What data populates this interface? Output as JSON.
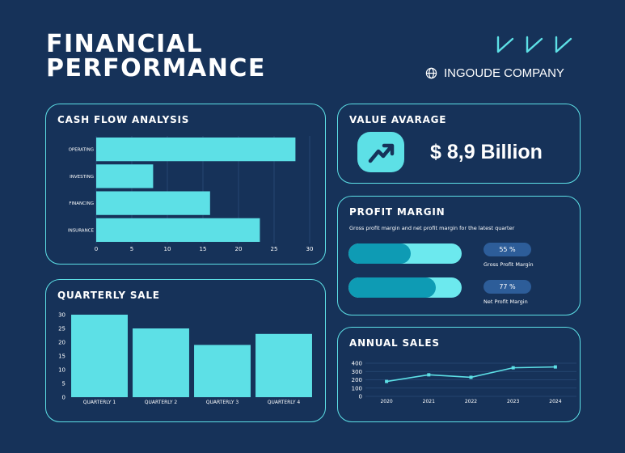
{
  "header": {
    "title_line1": "FINANCIAL",
    "title_line2": "PERFORMANCE",
    "company": "INGOUDE COMPANY",
    "logo_icon": "chevron-logo-icon",
    "company_icon": "globe-icon"
  },
  "colors": {
    "background": "#163259",
    "accent": "#5de0e6",
    "fill_dark": "#0e9bb4",
    "pill": "#2d5d99"
  },
  "cash_flow": {
    "title": "CASH FLOW ANALYSIS"
  },
  "quarterly_sale": {
    "title": "QUARTERLY SALE"
  },
  "value_average": {
    "title": "VALUE AVARAGE",
    "value": "$ 8,9 Billion",
    "icon": "trend-up-icon"
  },
  "profit_margin": {
    "title": "PROFIT MARGIN",
    "subtitle": "Gross profit margin and net profit margin for the latest quarter",
    "items": [
      {
        "label": "Gross Profit Margin",
        "percent_text": "55 %",
        "value": 55
      },
      {
        "label": "Net Profit Margin",
        "percent_text": "77 %",
        "value": 77
      }
    ]
  },
  "annual_sales": {
    "title": "ANNUAL SALES"
  },
  "chart_data": [
    {
      "type": "bar",
      "orientation": "horizontal",
      "title": "CASH FLOW ANALYSIS",
      "categories": [
        "OPERATING",
        "INVESTING",
        "FINANCING",
        "INSURANCE"
      ],
      "values": [
        28,
        8,
        16,
        23
      ],
      "xlim": [
        0,
        30
      ],
      "ticks": [
        0,
        5,
        10,
        15,
        20,
        25,
        30
      ],
      "grid": true
    },
    {
      "type": "bar",
      "title": "QUARTERLY SALE",
      "categories": [
        "QUARTERLY 1",
        "QUARTERLY 2",
        "QUARTERLY 3",
        "QUARTERLY 4"
      ],
      "values": [
        30,
        25,
        19,
        23
      ],
      "ylim": [
        0,
        30
      ],
      "ticks": [
        0,
        5,
        10,
        15,
        20,
        25,
        30
      ],
      "grid": false
    },
    {
      "type": "line",
      "title": "ANNUAL SALES",
      "x": [
        "2020",
        "2021",
        "2022",
        "2023",
        "2024"
      ],
      "values": [
        180,
        260,
        230,
        345,
        355
      ],
      "ylim": [
        0,
        400
      ],
      "ticks": [
        0,
        100,
        200,
        300,
        400
      ],
      "grid": true
    }
  ]
}
